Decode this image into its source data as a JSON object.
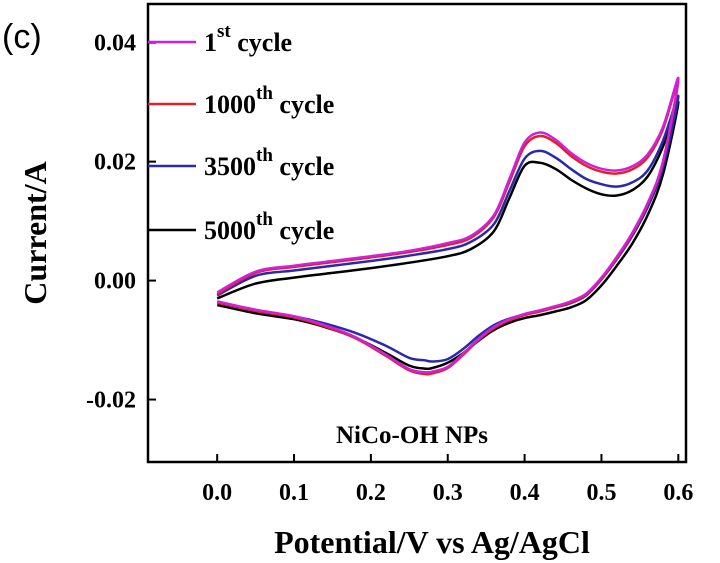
{
  "chart_data": {
    "type": "line",
    "panel_label": "(c)",
    "xlabel": "Potential/V vs Ag/AgCl",
    "ylabel": "Current/A",
    "xlim": [
      -0.09,
      0.61
    ],
    "ylim": [
      -0.0305,
      0.0465
    ],
    "xticks": [
      "0.0",
      "0.1",
      "0.2",
      "0.3",
      "0.4",
      "0.5",
      "0.6"
    ],
    "yticks": [
      "-0.02",
      "0.00",
      "0.02",
      "0.04"
    ],
    "annotation": "NiCo-OH NPs",
    "legend_position": "top-left",
    "series": [
      {
        "name": "1st cycle",
        "label_main": "1",
        "label_sup": "st",
        "label_tail": " cycle",
        "color": "#d020d8",
        "anodic_x": [
          0.0,
          0.05,
          0.1,
          0.15,
          0.2,
          0.25,
          0.3,
          0.33,
          0.36,
          0.38,
          0.4,
          0.42,
          0.44,
          0.46,
          0.48,
          0.5,
          0.52,
          0.54,
          0.56,
          0.58,
          0.6
        ],
        "anodic_y": [
          -0.002,
          0.0015,
          0.0025,
          0.0033,
          0.0041,
          0.005,
          0.0063,
          0.0075,
          0.011,
          0.017,
          0.0232,
          0.0249,
          0.0237,
          0.0215,
          0.0198,
          0.0188,
          0.0185,
          0.0192,
          0.0212,
          0.0258,
          0.034
        ],
        "cathodic_x": [
          0.6,
          0.58,
          0.56,
          0.54,
          0.52,
          0.5,
          0.48,
          0.46,
          0.44,
          0.42,
          0.4,
          0.38,
          0.36,
          0.34,
          0.32,
          0.3,
          0.28,
          0.27,
          0.25,
          0.22,
          0.18,
          0.14,
          0.1,
          0.05,
          0.0
        ],
        "cathodic_y": [
          0.03,
          0.02,
          0.013,
          0.008,
          0.004,
          0.0005,
          -0.0022,
          -0.0035,
          -0.0043,
          -0.005,
          -0.0056,
          -0.0065,
          -0.0078,
          -0.0098,
          -0.0123,
          -0.0145,
          -0.0153,
          -0.0154,
          -0.0149,
          -0.0125,
          -0.0095,
          -0.0075,
          -0.006,
          -0.0049,
          -0.0035
        ]
      },
      {
        "name": "1000th cycle",
        "label_main": "1000",
        "label_sup": "th",
        "label_tail": " cycle",
        "color": "#e0202a",
        "anodic_x": [
          0.0,
          0.05,
          0.1,
          0.15,
          0.2,
          0.25,
          0.3,
          0.33,
          0.36,
          0.38,
          0.4,
          0.42,
          0.44,
          0.46,
          0.48,
          0.5,
          0.52,
          0.54,
          0.56,
          0.58,
          0.6
        ],
        "anodic_y": [
          -0.0023,
          0.0013,
          0.0023,
          0.0031,
          0.0039,
          0.0048,
          0.006,
          0.0072,
          0.0107,
          0.0165,
          0.0226,
          0.0243,
          0.0232,
          0.021,
          0.0193,
          0.0183,
          0.018,
          0.0187,
          0.0207,
          0.0254,
          0.0337
        ],
        "cathodic_x": [
          0.6,
          0.58,
          0.56,
          0.54,
          0.52,
          0.5,
          0.48,
          0.46,
          0.44,
          0.42,
          0.4,
          0.38,
          0.36,
          0.34,
          0.32,
          0.3,
          0.28,
          0.27,
          0.25,
          0.22,
          0.18,
          0.14,
          0.1,
          0.05,
          0.0
        ],
        "cathodic_y": [
          0.0298,
          0.0198,
          0.0128,
          0.0078,
          0.0038,
          0.0003,
          -0.0024,
          -0.0037,
          -0.0045,
          -0.0052,
          -0.0058,
          -0.0067,
          -0.008,
          -0.01,
          -0.0125,
          -0.0147,
          -0.0156,
          -0.0157,
          -0.0151,
          -0.0127,
          -0.0097,
          -0.0077,
          -0.0062,
          -0.0051,
          -0.0037
        ]
      },
      {
        "name": "3500th cycle",
        "label_main": "3500",
        "label_sup": "th",
        "label_tail": " cycle",
        "color": "#2a2aa8",
        "anodic_x": [
          0.0,
          0.05,
          0.1,
          0.15,
          0.2,
          0.25,
          0.3,
          0.33,
          0.36,
          0.38,
          0.4,
          0.42,
          0.44,
          0.46,
          0.48,
          0.5,
          0.52,
          0.54,
          0.56,
          0.58,
          0.6
        ],
        "anodic_y": [
          -0.0025,
          0.0008,
          0.0017,
          0.0025,
          0.0033,
          0.0042,
          0.0053,
          0.0065,
          0.0095,
          0.015,
          0.0205,
          0.0218,
          0.0207,
          0.0188,
          0.0171,
          0.0162,
          0.0158,
          0.0165,
          0.0185,
          0.0235,
          0.031
        ],
        "cathodic_x": [
          0.6,
          0.58,
          0.56,
          0.54,
          0.52,
          0.5,
          0.48,
          0.46,
          0.44,
          0.42,
          0.4,
          0.38,
          0.36,
          0.34,
          0.32,
          0.3,
          0.28,
          0.27,
          0.25,
          0.22,
          0.18,
          0.14,
          0.1,
          0.05,
          0.0
        ],
        "cathodic_y": [
          0.029,
          0.019,
          0.0123,
          0.0075,
          0.0036,
          0.0002,
          -0.0025,
          -0.0038,
          -0.0045,
          -0.0051,
          -0.0057,
          -0.0064,
          -0.0075,
          -0.0093,
          -0.0115,
          -0.0132,
          -0.0136,
          -0.0134,
          -0.013,
          -0.011,
          -0.0088,
          -0.0072,
          -0.006,
          -0.005,
          -0.0037
        ]
      },
      {
        "name": "5000th cycle",
        "label_main": "5000",
        "label_sup": "th",
        "label_tail": " cycle",
        "color": "#000000",
        "anodic_x": [
          0.0,
          0.05,
          0.1,
          0.15,
          0.2,
          0.25,
          0.3,
          0.33,
          0.36,
          0.38,
          0.4,
          0.42,
          0.44,
          0.46,
          0.48,
          0.5,
          0.52,
          0.54,
          0.56,
          0.58,
          0.6
        ],
        "anodic_y": [
          -0.003,
          -0.0005,
          0.0005,
          0.0013,
          0.0021,
          0.003,
          0.0041,
          0.0053,
          0.0083,
          0.0138,
          0.0193,
          0.0198,
          0.0188,
          0.017,
          0.0155,
          0.0145,
          0.0143,
          0.0152,
          0.0175,
          0.0225,
          0.03
        ],
        "cathodic_x": [
          0.6,
          0.58,
          0.56,
          0.54,
          0.52,
          0.5,
          0.48,
          0.46,
          0.44,
          0.42,
          0.4,
          0.38,
          0.36,
          0.34,
          0.32,
          0.3,
          0.28,
          0.27,
          0.25,
          0.22,
          0.18,
          0.14,
          0.1,
          0.05,
          0.0
        ],
        "cathodic_y": [
          0.0285,
          0.0178,
          0.011,
          0.0062,
          0.0025,
          -0.0008,
          -0.0033,
          -0.0045,
          -0.0052,
          -0.0058,
          -0.0063,
          -0.0071,
          -0.0083,
          -0.0101,
          -0.0122,
          -0.0138,
          -0.0147,
          -0.0148,
          -0.0143,
          -0.0122,
          -0.0096,
          -0.0078,
          -0.0065,
          -0.0055,
          -0.0041
        ]
      }
    ]
  }
}
